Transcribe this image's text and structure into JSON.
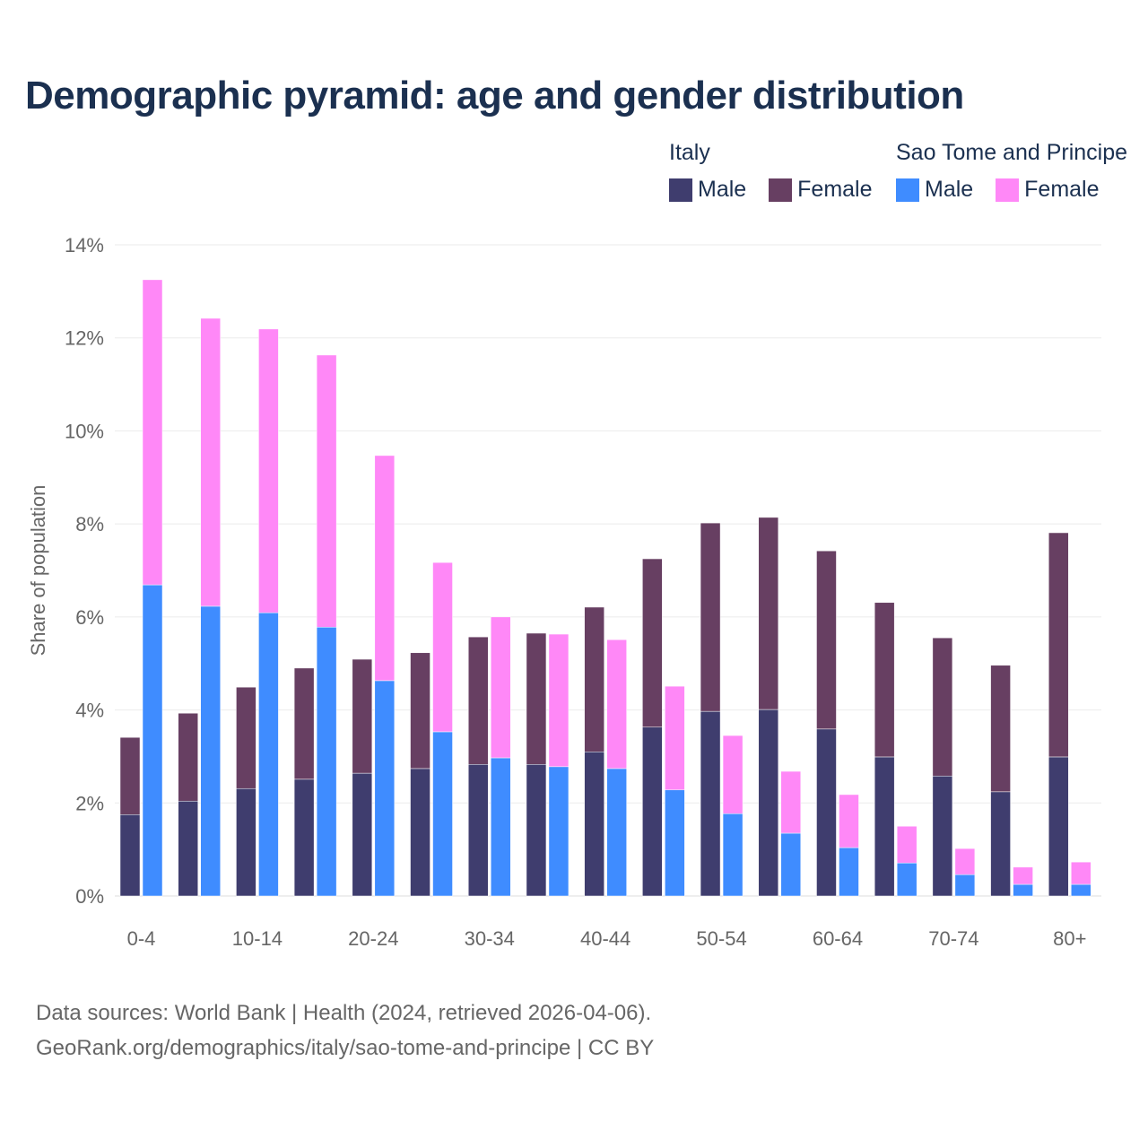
{
  "chart_data": {
    "type": "bar",
    "stacked": true,
    "title": "Demographic pyramid: age and gender distribution",
    "ylabel": "Share of population",
    "xlabel": "",
    "ylim": [
      0,
      14
    ],
    "yticks": [
      "0%",
      "2%",
      "4%",
      "6%",
      "8%",
      "10%",
      "12%",
      "14%"
    ],
    "ytick_values": [
      0,
      2,
      4,
      6,
      8,
      10,
      12,
      14
    ],
    "grid": true,
    "categories": [
      "0-4",
      "5-9",
      "10-14",
      "15-19",
      "20-24",
      "25-29",
      "30-34",
      "35-39",
      "40-44",
      "45-49",
      "50-54",
      "55-59",
      "60-64",
      "65-69",
      "70-74",
      "75-79",
      "80+"
    ],
    "xtick_labels": [
      "0-4",
      "",
      "10-14",
      "",
      "20-24",
      "",
      "30-34",
      "",
      "40-44",
      "",
      "50-54",
      "",
      "60-64",
      "",
      "70-74",
      "",
      "80+"
    ],
    "countries": [
      {
        "name": "Italy",
        "series": [
          {
            "name": "Male",
            "color": "#3f3d6e",
            "values": [
              1.75,
              2.04,
              2.31,
              2.51,
              2.64,
              2.74,
              2.83,
              2.83,
              3.1,
              3.63,
              3.97,
              4.01,
              3.59,
              2.99,
              2.58,
              2.24,
              2.99
            ]
          },
          {
            "name": "Female",
            "color": "#673f62",
            "values": [
              1.66,
              1.89,
              2.18,
              2.39,
              2.45,
              2.49,
              2.74,
              2.82,
              3.11,
              3.62,
              4.05,
              4.13,
              3.83,
              3.32,
              2.97,
              2.72,
              4.82
            ]
          }
        ]
      },
      {
        "name": "Sao Tome and Principe",
        "series": [
          {
            "name": "Male",
            "color": "#3f8cff",
            "values": [
              6.69,
              6.23,
              6.09,
              5.78,
              4.63,
              3.53,
              2.97,
              2.78,
              2.74,
              2.28,
              1.77,
              1.35,
              1.04,
              0.71,
              0.46,
              0.25,
              0.25
            ]
          },
          {
            "name": "Female",
            "color": "#ff88f7",
            "values": [
              6.56,
              6.19,
              6.1,
              5.85,
              4.84,
              3.64,
              3.03,
              2.85,
              2.77,
              2.23,
              1.68,
              1.33,
              1.14,
              0.79,
              0.56,
              0.37,
              0.48
            ]
          }
        ]
      }
    ],
    "legend_position": "top-right"
  },
  "footer": {
    "line1": "Data sources: World Bank | Health (2024, retrieved 2026-04-06).",
    "line2": "GeoRank.org/demographics/italy/sao-tome-and-principe | CC BY"
  }
}
